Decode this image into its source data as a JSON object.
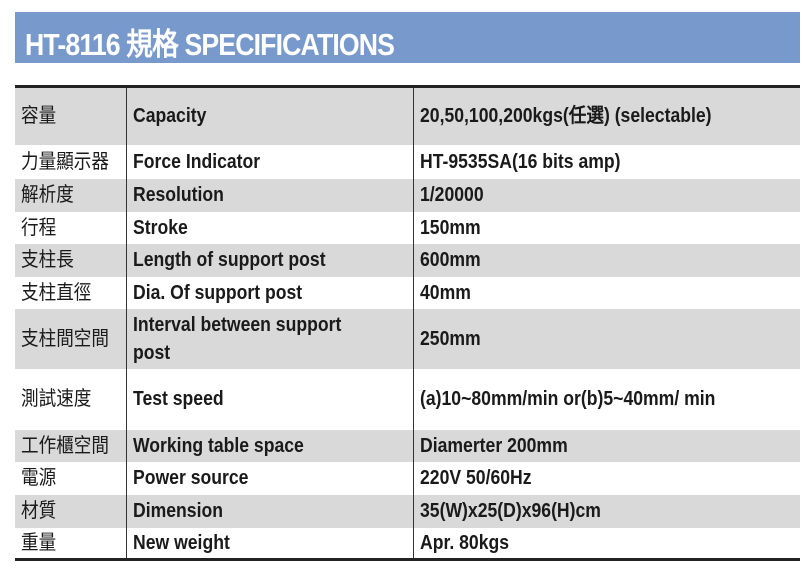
{
  "title": "HT-8116 規格 SPECIFICATIONS",
  "colors": {
    "header_bg": "#7899cc",
    "row_shade": "#d9d9d9"
  },
  "rows": [
    {
      "zh": "容量",
      "en": "Capacity",
      "value": "20,50,100,200kgs(任選) (selectable)"
    },
    {
      "zh": "力量顯示器",
      "en": "Force Indicator",
      "value": "HT-9535SA(16 bits amp)"
    },
    {
      "zh": "解析度",
      "en": "Resolution",
      "value": "1/20000"
    },
    {
      "zh": "行程",
      "en": "Stroke",
      "value": "150mm"
    },
    {
      "zh": "支柱長",
      "en": "Length of support post",
      "value": "600mm"
    },
    {
      "zh": "支柱直徑",
      "en": "Dia. Of support post",
      "value": "40mm"
    },
    {
      "zh": "支柱間空間",
      "en": "Interval between support post",
      "value": "250mm"
    },
    {
      "zh": "測試速度",
      "en": "Test speed",
      "value": "(a)10~80mm/min or(b)5~40mm/ min"
    },
    {
      "zh": "工作櫃空間",
      "en": "Working table space",
      "value": "Diamerter 200mm"
    },
    {
      "zh": "電源",
      "en": "Power source",
      "value": "220V 50/60Hz"
    },
    {
      "zh": "材質",
      "en": "Dimension",
      "value": "35(W)x25(D)x96(H)cm"
    },
    {
      "zh": "重量",
      "en": "New weight",
      "value": "Apr. 80kgs"
    }
  ]
}
